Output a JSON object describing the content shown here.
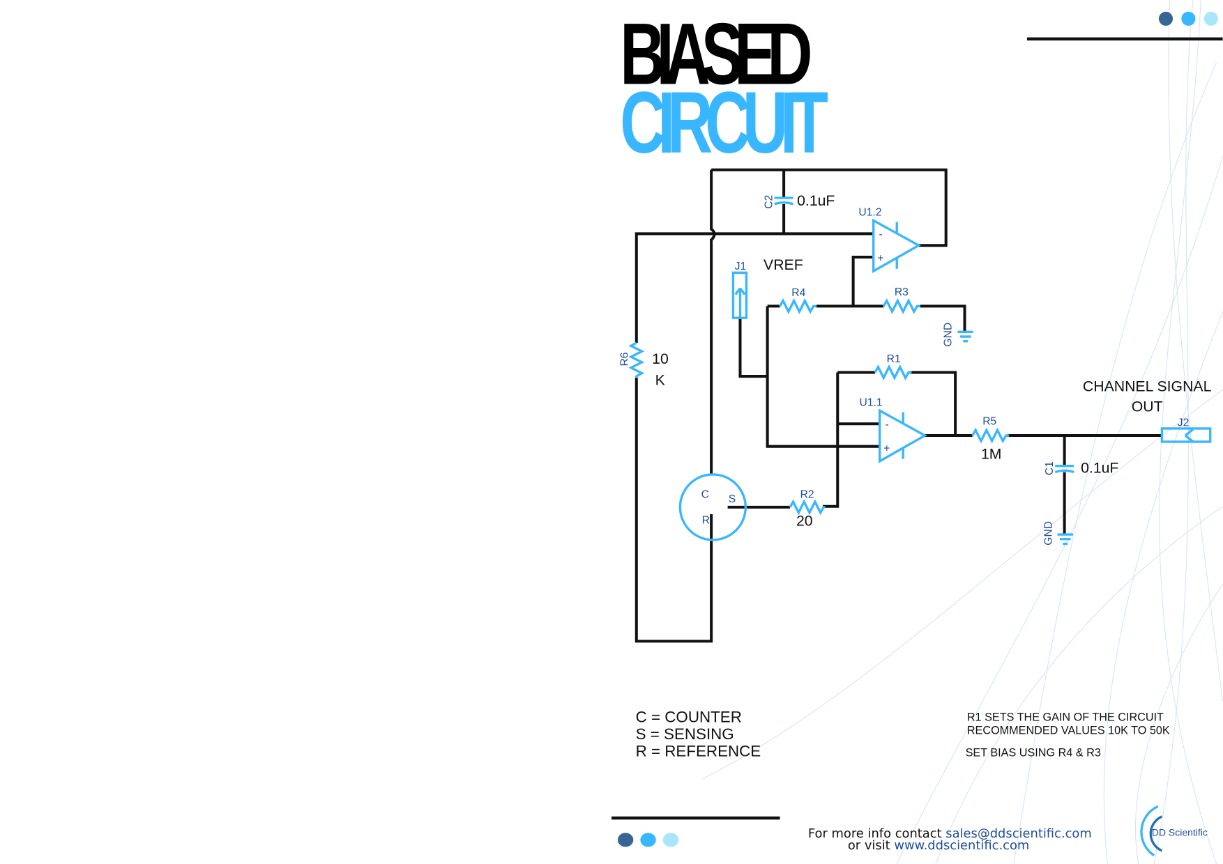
{
  "title": {
    "line1": "BIASED",
    "line2": "CIRCUIT"
  },
  "colors": {
    "accent": "#38b6ff",
    "dark_dot": "#376694",
    "mid_dot": "#38b6ff",
    "light_dot": "#a9e6fb",
    "label_blue": "#1f4e9c"
  },
  "components": {
    "c2": {
      "ref": "C2",
      "value": "0.1uF"
    },
    "u12": {
      "ref": "U1.2",
      "minus": "-",
      "plus": "+"
    },
    "j1": {
      "ref": "J1",
      "net": "VREF"
    },
    "r4": {
      "ref": "R4"
    },
    "r3": {
      "ref": "R3"
    },
    "gnd1": {
      "ref": "GND"
    },
    "r6": {
      "ref": "R6",
      "value1": "10",
      "value2": "K"
    },
    "r1": {
      "ref": "R1"
    },
    "u11": {
      "ref": "U1.1",
      "minus": "-",
      "plus": "+"
    },
    "r5": {
      "ref": "R5",
      "value": "1M"
    },
    "output": {
      "line1": "CHANNEL SIGNAL",
      "line2": "OUT"
    },
    "j2": {
      "ref": "J2"
    },
    "c1": {
      "ref": "C1",
      "value": "0.1uF"
    },
    "gnd2": {
      "ref": "GND"
    },
    "sensor": {
      "c": "C",
      "s": "S",
      "r": "R"
    },
    "r2": {
      "ref": "R2",
      "value": "20"
    }
  },
  "legend": [
    "C = COUNTER",
    "S = SENSING",
    "R = REFERENCE"
  ],
  "notes": [
    "R1 SETS THE GAIN OF THE CIRCUIT",
    "RECOMMENDED VALUES 10K TO 50K",
    "SET BIAS USING R4 & R3"
  ],
  "footer": {
    "contact_prefix": "For more info contact ",
    "email": "sales@ddscientific.com",
    "visit_prefix": "or visit ",
    "website": "www.ddscientific.com"
  },
  "logo": {
    "text": "DD Scientific"
  }
}
